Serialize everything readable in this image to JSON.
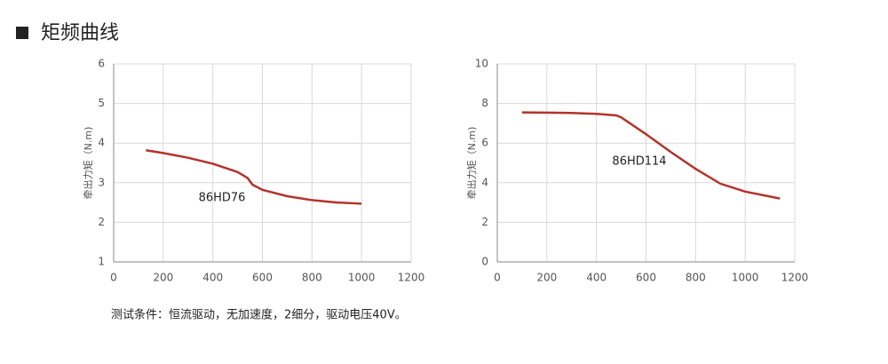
{
  "header": {
    "title": "矩频曲线"
  },
  "chart_data": [
    {
      "type": "line",
      "ylabel": "牵出力矩（N.m)",
      "x": [
        130,
        200,
        300,
        400,
        500,
        540,
        560,
        600,
        700,
        800,
        900,
        1000
      ],
      "series": [
        {
          "name": "86HD76",
          "color": "#b3332c",
          "values": [
            3.82,
            3.75,
            3.63,
            3.48,
            3.27,
            3.12,
            2.95,
            2.82,
            2.66,
            2.56,
            2.5,
            2.47
          ]
        }
      ],
      "xlim": [
        0,
        1200
      ],
      "xticks": [
        0,
        200,
        400,
        600,
        800,
        1000,
        1200
      ],
      "ylim": [
        1,
        6
      ],
      "yticks": [
        1,
        2,
        3,
        4,
        5,
        6
      ],
      "grid": true
    },
    {
      "type": "line",
      "ylabel": "牵出力矩（N.m)",
      "x": [
        100,
        200,
        300,
        400,
        480,
        500,
        600,
        700,
        800,
        900,
        1000,
        1140
      ],
      "series": [
        {
          "name": "86HD114",
          "color": "#b3332c",
          "values": [
            7.55,
            7.54,
            7.52,
            7.48,
            7.4,
            7.3,
            6.45,
            5.55,
            4.7,
            3.95,
            3.55,
            3.2
          ]
        }
      ],
      "xlim": [
        0,
        1200
      ],
      "xticks": [
        0,
        200,
        400,
        600,
        800,
        1000,
        1200
      ],
      "ylim": [
        0,
        10
      ],
      "yticks": [
        0,
        2,
        4,
        6,
        8,
        10
      ],
      "grid": true
    }
  ],
  "footnote": "测试条件：恒流驱动，无加速度，2细分，驱动电压40V。"
}
